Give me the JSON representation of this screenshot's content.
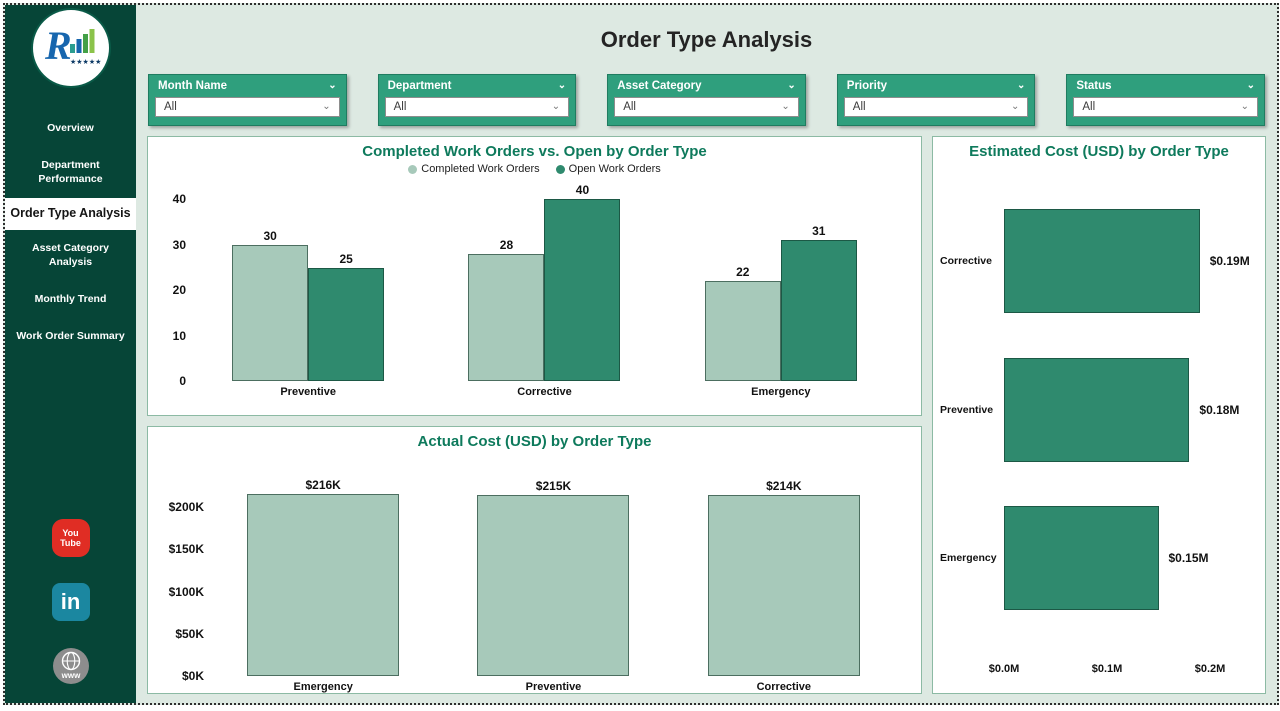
{
  "page_title": "Order Type Analysis",
  "sidebar": {
    "nav_items": [
      {
        "label": "Overview",
        "active": false
      },
      {
        "label": "Department Performance",
        "active": false
      },
      {
        "label": "Order Type Analysis",
        "active": true
      },
      {
        "label": "Asset Category Analysis",
        "active": false
      },
      {
        "label": "Monthly Trend",
        "active": false
      },
      {
        "label": "Work Order Summary",
        "active": false
      }
    ],
    "social": {
      "youtube": [
        "You",
        "Tube"
      ],
      "linkedin": "in",
      "website": "www"
    }
  },
  "filters": [
    {
      "label": "Month Name",
      "value": "All"
    },
    {
      "label": "Department",
      "value": "All"
    },
    {
      "label": "Asset Category",
      "value": "All"
    },
    {
      "label": "Priority",
      "value": "All"
    },
    {
      "label": "Status",
      "value": "All"
    }
  ],
  "colors": {
    "sidebar_green": "#064537",
    "slicer_green": "#2f9f7d",
    "completed_bar": "#a7c9ba",
    "open_bar": "#2f8a6e",
    "chart_title": "#0e7a5c"
  },
  "chart_data": [
    {
      "type": "bar",
      "title": "Completed Work Orders vs. Open by Order Type",
      "categories": [
        "Preventive",
        "Corrective",
        "Emergency"
      ],
      "series": [
        {
          "name": "Completed Work Orders",
          "values": [
            30,
            28,
            22
          ],
          "color": "#a7c9ba",
          "border": "#4c6e60"
        },
        {
          "name": "Open Work Orders",
          "values": [
            25,
            40,
            31
          ],
          "color": "#2f8a6e",
          "border": "#1c5845"
        }
      ],
      "ylim": [
        0,
        40
      ],
      "yticks": [
        0,
        10,
        20,
        30,
        40
      ],
      "legend_position": "top",
      "grid": false
    },
    {
      "type": "bar",
      "title": "Actual Cost (USD) by Order Type",
      "categories": [
        "Emergency",
        "Preventive",
        "Corrective"
      ],
      "values": [
        216,
        215,
        214
      ],
      "unit": "thousand USD",
      "data_labels": [
        "$216K",
        "$215K",
        "$214K"
      ],
      "color": "#a7c9ba",
      "border": "#4c6e60",
      "ylim": [
        0,
        200
      ],
      "yticks": [
        {
          "value": 0,
          "label": "$0K"
        },
        {
          "value": 50,
          "label": "$50K"
        },
        {
          "value": 100,
          "label": "$100K"
        },
        {
          "value": 150,
          "label": "$150K"
        },
        {
          "value": 200,
          "label": "$200K"
        }
      ],
      "grid": false
    },
    {
      "type": "bar-horizontal",
      "title": "Estimated Cost (USD) by Order Type",
      "categories": [
        "Corrective",
        "Preventive",
        "Emergency"
      ],
      "values": [
        0.19,
        0.18,
        0.15
      ],
      "unit": "million USD",
      "data_labels": [
        "$0.19M",
        "$0.18M",
        "$0.15M"
      ],
      "color": "#2f8a6e",
      "border": "#1c5845",
      "xlim": [
        0,
        0.2
      ],
      "xticks": [
        {
          "value": 0.0,
          "label": "$0.0M"
        },
        {
          "value": 0.1,
          "label": "$0.1M"
        },
        {
          "value": 0.2,
          "label": "$0.2M"
        }
      ],
      "grid": false
    }
  ]
}
